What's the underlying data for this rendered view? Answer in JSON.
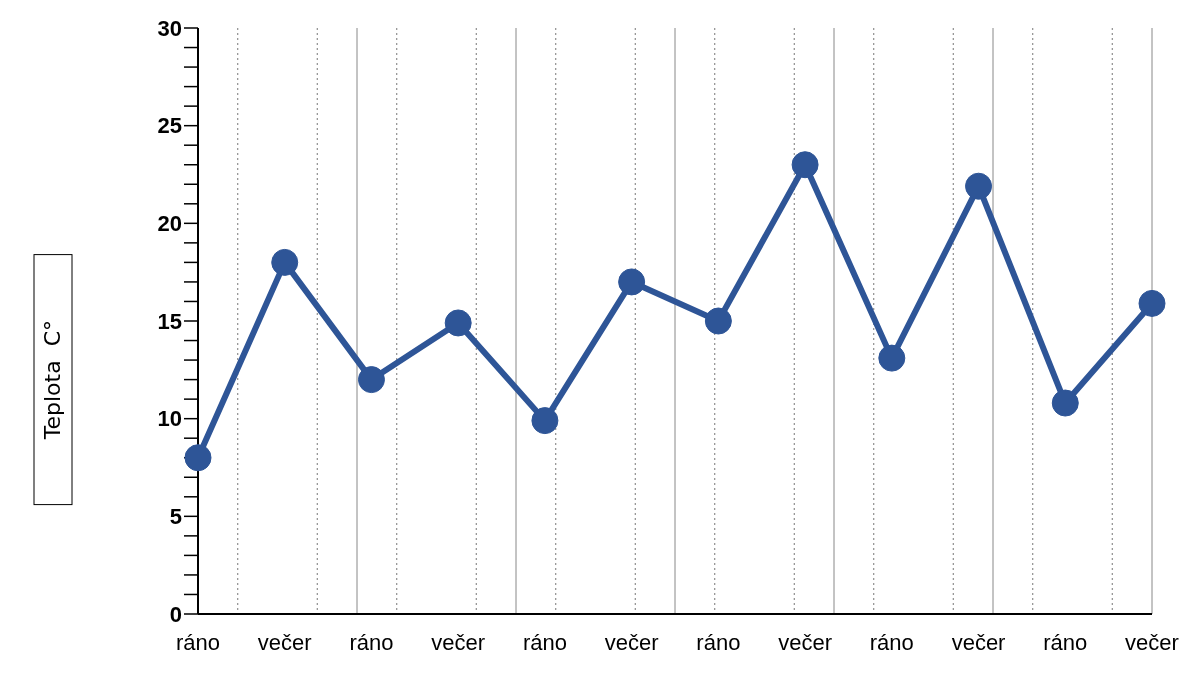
{
  "chart_data": {
    "type": "line",
    "ylabel": "Teplota  C°",
    "categories": [
      "ráno",
      "večer",
      "ráno",
      "večer",
      "ráno",
      "večer",
      "ráno",
      "večer",
      "ráno",
      "večer",
      "ráno",
      "večer"
    ],
    "series": [
      {
        "color": "#2e5597",
        "values": [
          8,
          18,
          12,
          14.9,
          9.9,
          17,
          15,
          23,
          13.1,
          21.9,
          10.8,
          15.9
        ]
      }
    ],
    "ylim": [
      0,
      30
    ],
    "yticks": [
      0,
      {
        "value": 1,
        "label": null
      },
      {
        "value": 2,
        "label": null
      },
      {
        "value": 3,
        "label": null
      },
      {
        "value": 4,
        "label": null
      },
      5,
      {
        "value": 6,
        "label": null
      },
      {
        "value": 7,
        "label": null
      },
      {
        "value": 8,
        "label": null
      },
      {
        "value": 9,
        "label": null
      },
      10,
      {
        "value": 11,
        "label": null
      },
      {
        "value": 12,
        "label": null
      },
      {
        "value": 13,
        "label": null
      },
      {
        "value": 14,
        "label": null
      },
      15,
      {
        "value": 16,
        "label": null
      },
      {
        "value": 17,
        "label": null
      },
      {
        "value": 18,
        "label": null
      },
      {
        "value": 19,
        "label": null
      },
      20,
      {
        "value": 21,
        "label": null
      },
      {
        "value": 22,
        "label": null
      },
      {
        "value": 23,
        "label": null
      },
      {
        "value": 24,
        "label": null
      },
      25,
      {
        "value": 26,
        "label": null
      },
      {
        "value": 27,
        "label": null
      },
      {
        "value": 28,
        "label": null
      },
      {
        "value": 29,
        "label": null
      },
      30
    ],
    "grid": "x",
    "legend": false,
    "marker": "circle",
    "line_style": "solid"
  }
}
